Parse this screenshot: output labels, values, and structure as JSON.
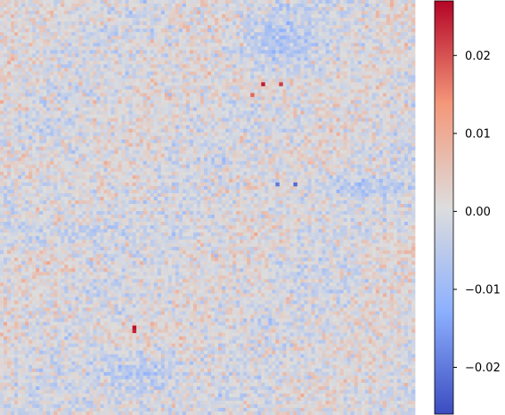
{
  "chart_data": {
    "type": "heatmap",
    "title": "",
    "xlabel": "",
    "ylabel": "",
    "colormap": "coolwarm",
    "color_low": "#3b4cc0",
    "color_mid": "#dddddd",
    "color_high": "#b40426",
    "vmin": -0.026,
    "vmax": 0.027,
    "grid": false,
    "axes_visible": false,
    "colorbar": {
      "position": "right",
      "ticks": [
        0.02,
        0.01,
        0.0,
        -0.01,
        -0.02
      ],
      "tick_labels": [
        "0.02",
        "0.01",
        "0.00",
        "−0.01",
        "−0.02"
      ]
    },
    "resolution": [
      116,
      116
    ],
    "pattern": "noisy near-zero field with strong patches in the top and bottom center, streaks on the left and right",
    "extremes": {
      "max_approx": 0.027,
      "min_approx": -0.026
    }
  }
}
